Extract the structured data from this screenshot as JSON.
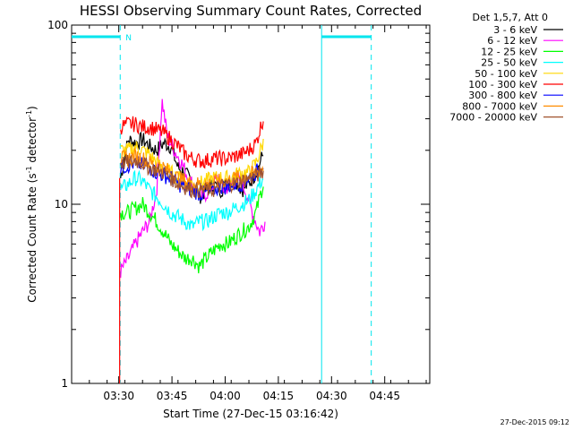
{
  "chart_data": {
    "type": "line",
    "title": "HESSI Observing Summary Count Rates, Corrected",
    "xlabel": "Start Time (27-Dec-15 03:16:42)",
    "ylabel": "Corrected Count Rate (s",
    "ylabel_sup": "-1",
    "ylabel_tail": " detector",
    "ylabel_tail_sup": "-1",
    "ylabel_close": ")",
    "y_scale": "log",
    "ylim": [
      1,
      100
    ],
    "y_ticks": [
      {
        "value": 1,
        "label": "1"
      },
      {
        "value": 10,
        "label": "10"
      },
      {
        "value": 100,
        "label": "100"
      }
    ],
    "x_unit": "minutes since 03:16:42",
    "xlim": [
      0,
      101
    ],
    "x_ticks": [
      {
        "value": 13.3,
        "label": "03:30"
      },
      {
        "value": 28.3,
        "label": "03:45"
      },
      {
        "value": 43.3,
        "label": "04:00"
      },
      {
        "value": 58.3,
        "label": "04:15"
      },
      {
        "value": 73.3,
        "label": "04:30"
      },
      {
        "value": 88.3,
        "label": "04:45"
      }
    ],
    "legend_header": "Det 1,5,7, Att 0",
    "series": [
      {
        "name": "3 - 6 keV",
        "color": "#000000",
        "values": [
          [
            13.8,
            14
          ],
          [
            16,
            23
          ],
          [
            18,
            22
          ],
          [
            20,
            23
          ],
          [
            22,
            21
          ],
          [
            24,
            20
          ],
          [
            26,
            22
          ],
          [
            28,
            21
          ],
          [
            30,
            16
          ],
          [
            32,
            15
          ],
          [
            34,
            13
          ],
          [
            36,
            11
          ],
          [
            38,
            12
          ],
          [
            40,
            13
          ],
          [
            42,
            12
          ],
          [
            44,
            13
          ],
          [
            46,
            14
          ],
          [
            48,
            12
          ],
          [
            50,
            13
          ],
          [
            52,
            15
          ],
          [
            54,
            19
          ]
        ]
      },
      {
        "name": "6 - 12 keV",
        "color": "#ff00ff",
        "values": [
          [
            13.8,
            4.2
          ],
          [
            16,
            5
          ],
          [
            18,
            6
          ],
          [
            20,
            7
          ],
          [
            22,
            8
          ],
          [
            24,
            12
          ],
          [
            25.5,
            38
          ],
          [
            27,
            24
          ],
          [
            29,
            20
          ],
          [
            31,
            17
          ],
          [
            33,
            14
          ],
          [
            35,
            12
          ],
          [
            37,
            11
          ],
          [
            39,
            12
          ],
          [
            41,
            14
          ],
          [
            43,
            12
          ],
          [
            45,
            13
          ],
          [
            47,
            14
          ],
          [
            49,
            12
          ],
          [
            51,
            9
          ],
          [
            53,
            7
          ],
          [
            54.5,
            8
          ]
        ]
      },
      {
        "name": "12 - 25 keV",
        "color": "#00ff00",
        "values": [
          [
            13.8,
            9
          ],
          [
            16,
            9
          ],
          [
            18,
            9.5
          ],
          [
            20,
            10
          ],
          [
            22,
            9
          ],
          [
            24,
            8
          ],
          [
            26,
            7
          ],
          [
            28,
            6
          ],
          [
            30,
            5.5
          ],
          [
            32,
            5
          ],
          [
            34,
            5
          ],
          [
            36,
            4.5
          ],
          [
            38,
            5
          ],
          [
            40,
            5.5
          ],
          [
            42,
            6
          ],
          [
            44,
            6
          ],
          [
            46,
            6.5
          ],
          [
            48,
            7
          ],
          [
            50,
            7.5
          ],
          [
            52,
            9
          ],
          [
            54,
            13
          ]
        ]
      },
      {
        "name": "25 - 50 keV",
        "color": "#00ffff",
        "values": [
          [
            13.8,
            12
          ],
          [
            16,
            13
          ],
          [
            18,
            14
          ],
          [
            20,
            13.5
          ],
          [
            22,
            12
          ],
          [
            24,
            11
          ],
          [
            26,
            10
          ],
          [
            28,
            9
          ],
          [
            30,
            8.5
          ],
          [
            32,
            8
          ],
          [
            34,
            7.5
          ],
          [
            36,
            8
          ],
          [
            38,
            8
          ],
          [
            40,
            8.5
          ],
          [
            42,
            9
          ],
          [
            44,
            9
          ],
          [
            46,
            9.5
          ],
          [
            48,
            10
          ],
          [
            50,
            10.5
          ],
          [
            52,
            12
          ],
          [
            54,
            14
          ]
        ]
      },
      {
        "name": "50 - 100 keV",
        "color": "#ffd700",
        "values": [
          [
            13.8,
            20
          ],
          [
            16,
            20
          ],
          [
            18,
            21
          ],
          [
            20,
            20
          ],
          [
            22,
            19
          ],
          [
            24,
            17
          ],
          [
            26,
            16
          ],
          [
            28,
            15
          ],
          [
            30,
            14
          ],
          [
            32,
            13.5
          ],
          [
            34,
            13
          ],
          [
            36,
            13
          ],
          [
            38,
            13.5
          ],
          [
            40,
            14
          ],
          [
            42,
            14
          ],
          [
            44,
            14
          ],
          [
            46,
            14.5
          ],
          [
            48,
            15
          ],
          [
            50,
            15
          ],
          [
            52,
            17
          ],
          [
            54,
            22
          ]
        ]
      },
      {
        "name": "100 - 300 keV",
        "color": "#ff0000",
        "values": [
          [
            13.8,
            27
          ],
          [
            16,
            28
          ],
          [
            18,
            28
          ],
          [
            20,
            27
          ],
          [
            22,
            27
          ],
          [
            24,
            26
          ],
          [
            26,
            25
          ],
          [
            28,
            23
          ],
          [
            30,
            21
          ],
          [
            32,
            19
          ],
          [
            34,
            18
          ],
          [
            36,
            17.5
          ],
          [
            38,
            17.5
          ],
          [
            40,
            18
          ],
          [
            42,
            18
          ],
          [
            44,
            18
          ],
          [
            46,
            18.5
          ],
          [
            48,
            19
          ],
          [
            50,
            20
          ],
          [
            52,
            22
          ],
          [
            54,
            30
          ]
        ]
      },
      {
        "name": "300 - 800 keV",
        "color": "#0000ff",
        "values": [
          [
            13.8,
            16
          ],
          [
            16,
            16.5
          ],
          [
            18,
            17
          ],
          [
            20,
            16.5
          ],
          [
            22,
            16
          ],
          [
            24,
            15
          ],
          [
            26,
            14.5
          ],
          [
            28,
            14
          ],
          [
            30,
            13
          ],
          [
            32,
            12.5
          ],
          [
            34,
            12
          ],
          [
            36,
            11.5
          ],
          [
            38,
            11.5
          ],
          [
            40,
            12
          ],
          [
            42,
            12.5
          ],
          [
            44,
            12.5
          ],
          [
            46,
            13
          ],
          [
            48,
            13
          ],
          [
            50,
            14
          ],
          [
            52,
            15
          ],
          [
            54,
            17
          ]
        ]
      },
      {
        "name": "800 - 7000 keV",
        "color": "#ff8c00",
        "values": [
          [
            13.8,
            18
          ],
          [
            16,
            18
          ],
          [
            18,
            18.5
          ],
          [
            20,
            18
          ],
          [
            22,
            17
          ],
          [
            24,
            16.5
          ],
          [
            26,
            16
          ],
          [
            28,
            15
          ],
          [
            30,
            14
          ],
          [
            32,
            13.5
          ],
          [
            34,
            13
          ],
          [
            36,
            13
          ],
          [
            38,
            13
          ],
          [
            40,
            13
          ],
          [
            42,
            13.5
          ],
          [
            44,
            13.5
          ],
          [
            46,
            14
          ],
          [
            48,
            14
          ],
          [
            50,
            14.5
          ],
          [
            52,
            15
          ],
          [
            54,
            16
          ]
        ]
      },
      {
        "name": "7000 - 20000 keV",
        "color": "#a0522d",
        "values": [
          [
            13.8,
            17
          ],
          [
            16,
            17
          ],
          [
            18,
            17.5
          ],
          [
            20,
            17
          ],
          [
            22,
            16
          ],
          [
            24,
            15.5
          ],
          [
            26,
            15
          ],
          [
            28,
            14
          ],
          [
            30,
            13
          ],
          [
            32,
            12.5
          ],
          [
            34,
            12
          ],
          [
            36,
            12
          ],
          [
            38,
            12
          ],
          [
            40,
            12
          ],
          [
            42,
            12.5
          ],
          [
            44,
            13
          ],
          [
            46,
            13
          ],
          [
            48,
            13.5
          ],
          [
            50,
            14
          ],
          [
            52,
            14.5
          ],
          [
            54,
            15
          ]
        ]
      }
    ],
    "annotations": {
      "night_intervals": [
        [
          -2,
          13.7
        ],
        [
          70.5,
          84.5
        ]
      ],
      "saa_flags": [
        {
          "x": 13.7,
          "label": "N"
        }
      ]
    },
    "grid": false
  },
  "timestamp": "27-Dec-2015 09:12"
}
